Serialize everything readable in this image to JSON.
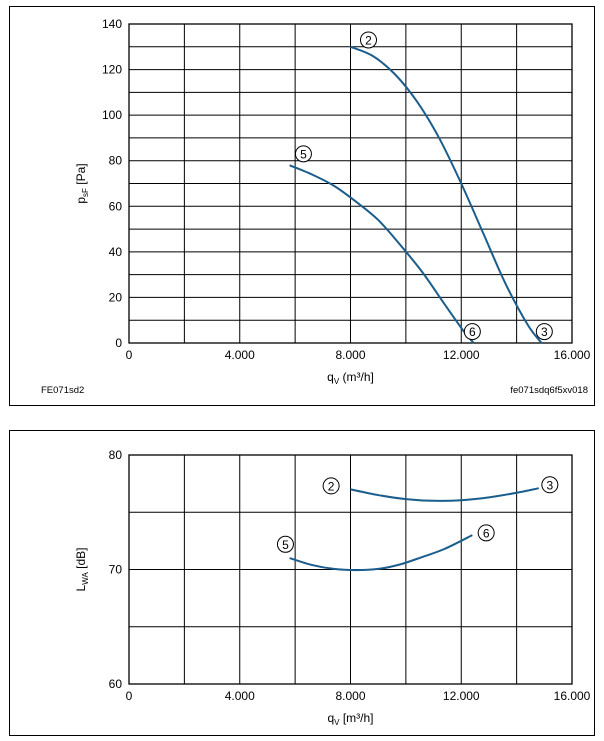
{
  "colors": {
    "curve": "#1b5d8c",
    "grid": "#000000",
    "axis": "#000000"
  },
  "notes": {
    "left": "FE071sd2",
    "right": "fe071sdq6f5xv018"
  },
  "chart_data": [
    {
      "type": "line",
      "x_tick_labels": [
        "0",
        "4.000",
        "8.000",
        "12.000",
        "16.000"
      ],
      "y_tick_labels": [
        "0",
        "20",
        "40",
        "60",
        "80",
        "100",
        "120",
        "140"
      ],
      "x_ticks": [
        0,
        4000,
        8000,
        12000,
        16000
      ],
      "y_ticks": [
        0,
        20,
        40,
        60,
        80,
        100,
        120,
        140
      ],
      "xlim": [
        0,
        16000
      ],
      "ylim": [
        0,
        140
      ],
      "x_grid_step": 2000,
      "y_grid_step": 10,
      "grid": true,
      "xlabel": {
        "main": "q",
        "sub": "V",
        "unit": " (m³/h]"
      },
      "ylabel": {
        "main": "p",
        "sub": "sF",
        "unit": " [Pa]"
      },
      "series": [
        {
          "name": "2",
          "label_at": [
            8650,
            133
          ],
          "x": [
            8000,
            8800,
            9600,
            10400,
            11200,
            12000,
            12800,
            13600,
            14400,
            14900
          ],
          "y": [
            130,
            126,
            118,
            106,
            90,
            70,
            48,
            26,
            8,
            0
          ]
        },
        {
          "name": "5",
          "label_at": [
            6300,
            83
          ],
          "x": [
            5800,
            6600,
            7400,
            8200,
            9000,
            9800,
            10600,
            11400,
            12100,
            12450
          ],
          "y": [
            78,
            74,
            69,
            62,
            54,
            43,
            31,
            17,
            5,
            0
          ]
        }
      ],
      "endpoint_labels": [
        {
          "name": "6",
          "at": [
            12400,
            5
          ]
        },
        {
          "name": "3",
          "at": [
            15000,
            5
          ]
        }
      ]
    },
    {
      "type": "line",
      "x_tick_labels": [
        "0",
        "4.000",
        "8.000",
        "12.000",
        "16.000"
      ],
      "y_tick_labels": [
        "60",
        "70",
        "80"
      ],
      "x_ticks": [
        0,
        4000,
        8000,
        12000,
        16000
      ],
      "y_ticks": [
        60,
        70,
        80
      ],
      "xlim": [
        0,
        16000
      ],
      "ylim": [
        60,
        80
      ],
      "x_grid_step": 2000,
      "y_grid_step": 5,
      "grid": true,
      "xlabel": {
        "main": "q",
        "sub": "V",
        "unit": " [m³/h]"
      },
      "ylabel": {
        "main": "L",
        "sub": "WA",
        "unit": " [dB]"
      },
      "series": [
        {
          "name": "2",
          "label_at": [
            7300,
            77.3
          ],
          "x": [
            8000,
            9000,
            10000,
            11000,
            12000,
            13000,
            14000,
            14800
          ],
          "y": [
            77,
            76.5,
            76.15,
            76,
            76.05,
            76.3,
            76.7,
            77.1
          ]
        },
        {
          "name": "5",
          "label_at": [
            5650,
            72.2
          ],
          "x": [
            5800,
            6600,
            7400,
            8200,
            9000,
            9800,
            10600,
            11400,
            12400
          ],
          "y": [
            71,
            70.4,
            70.05,
            69.95,
            70.05,
            70.45,
            71.1,
            71.8,
            73
          ]
        }
      ],
      "endpoint_labels": [
        {
          "name": "3",
          "at": [
            15200,
            77.4
          ]
        },
        {
          "name": "6",
          "at": [
            12900,
            73.2
          ]
        }
      ]
    }
  ]
}
